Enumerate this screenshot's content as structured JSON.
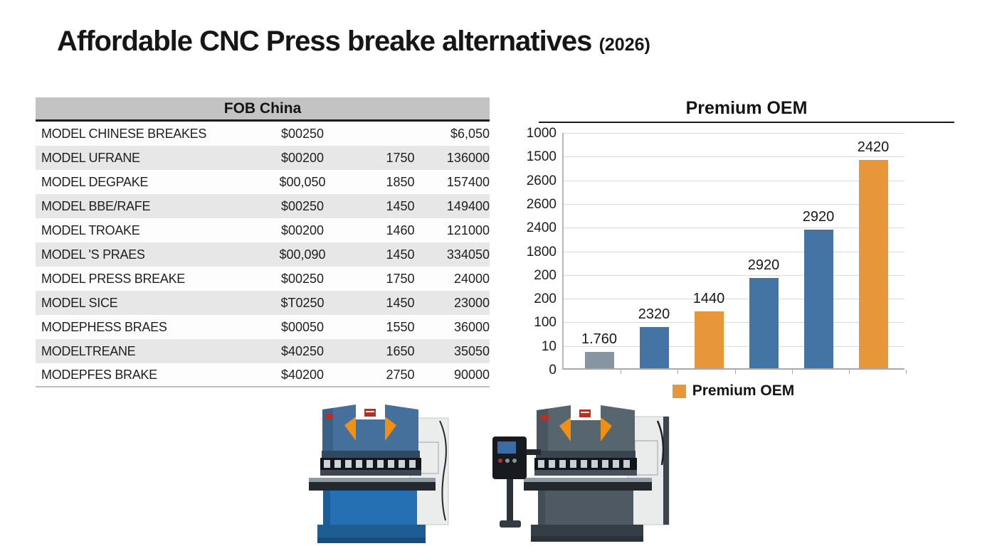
{
  "page": {
    "title": "Affordable CNC Press breake alternatives",
    "title_suffix": "(2026)"
  },
  "table": {
    "header": "FOB China",
    "rows": [
      {
        "model": "MODEL CHINESE BREAKES",
        "price": "$00250",
        "col3": "",
        "col4": "$6,050"
      },
      {
        "model": "MODEL UFRANE",
        "price": "$00200",
        "col3": "1750",
        "col4": "136000"
      },
      {
        "model": "MODEL DEGPAKE",
        "price": "$00,050",
        "col3": "1850",
        "col4": "157400"
      },
      {
        "model": "MODEL BBE/RAFE",
        "price": "$00250",
        "col3": "1450",
        "col4": "149400"
      },
      {
        "model": "MODEL  TROAKE",
        "price": "$00200",
        "col3": "1460",
        "col4": "121000"
      },
      {
        "model": "MODEL 'S PRAES",
        "price": "$00,090",
        "col3": "1450",
        "col4": "334050"
      },
      {
        "model": "MODEL PRESS BREAKE",
        "price": "$00250",
        "col3": "1750",
        "col4": "24000"
      },
      {
        "model": "MODEL SICE",
        "price": "$T0250",
        "col3": "1450",
        "col4": "23000"
      },
      {
        "model": "MODEPHESS BRAES",
        "price": "$00050",
        "col3": "1550",
        "col4": "36000"
      },
      {
        "model": "MODELTREANE",
        "price": "$40250",
        "col3": "1650",
        "col4": "35050"
      },
      {
        "model": "MODEPFES BRAKE",
        "price": "$40200",
        "col3": "2750",
        "col4": "90000"
      }
    ]
  },
  "chart_data": {
    "type": "bar",
    "title": "Premium OEM",
    "y_tick_labels": [
      "1000",
      "1500",
      "2600",
      "2600",
      "2400",
      "1800",
      "200",
      "200",
      "100",
      "10",
      "0"
    ],
    "bars": [
      {
        "label": "1.760",
        "series": "gray",
        "height_frac": 0.07
      },
      {
        "label": "2320",
        "series": "blue",
        "height_frac": 0.175
      },
      {
        "label": "1440",
        "series": "orange",
        "height_frac": 0.24
      },
      {
        "label": "2920",
        "series": "blue",
        "height_frac": 0.38
      },
      {
        "label": "2920",
        "series": "blue",
        "height_frac": 0.585
      },
      {
        "label": "2420",
        "series": "orange",
        "height_frac": 0.88
      }
    ],
    "colors": {
      "gray": "#8795a3",
      "blue": "#4474a4",
      "orange": "#e8963a"
    },
    "legend": {
      "label": "Premium OEM",
      "swatch_color": "#e8963a"
    },
    "grid": true,
    "legend_position": "bottom",
    "xlabel": "",
    "ylabel": ""
  },
  "images": {
    "machine_left": "blue-cnc-press-brake-machine",
    "machine_right": "gray-cnc-press-brake-machine-with-control-pendant"
  }
}
